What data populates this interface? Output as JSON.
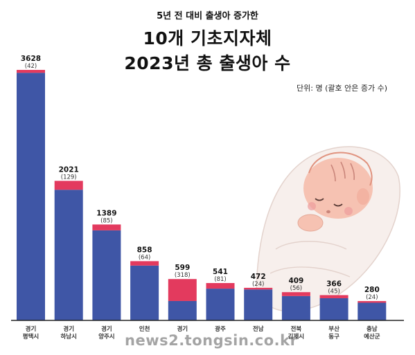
{
  "header": {
    "subtitle": "5년 전 대비 출생아 증가한",
    "title_line1": "10개 기초지자체",
    "title_line2": "2023년 총 출생아 수",
    "unit_note": "단위: 명 (괄호 안은 증가 수)"
  },
  "watermark": "news2.tongsin.co.kr",
  "colors": {
    "base": "#3f56a6",
    "increase": "#e33a5e",
    "baseline": "#222222"
  },
  "chart_data": {
    "type": "bar",
    "stacked": true,
    "categories": [
      [
        "경기",
        "평택시"
      ],
      [
        "경기",
        "하남시"
      ],
      [
        "경기",
        "양주시"
      ],
      [
        "인천",
        ""
      ],
      [
        "경기",
        ""
      ],
      [
        "광주",
        ""
      ],
      [
        "전남",
        ""
      ],
      [
        "전북",
        "김제시"
      ],
      [
        "부산",
        "동구"
      ],
      [
        "충남",
        "예산군"
      ]
    ],
    "totals": [
      3628,
      2021,
      1389,
      858,
      599,
      541,
      472,
      409,
      366,
      280
    ],
    "increases": [
      42,
      129,
      85,
      64,
      318,
      81,
      24,
      56,
      45,
      24
    ],
    "total_labels": [
      "3628",
      "2021",
      "1389",
      "858",
      "599",
      "541",
      "472",
      "409",
      "366",
      "280"
    ],
    "increase_labels": [
      "(42)",
      "(129)",
      "(85)",
      "(64)",
      "(318)",
      "(81)",
      "(24)",
      "(56)",
      "(45)",
      "(24)"
    ],
    "ylim": [
      0,
      3628
    ],
    "grid": false,
    "legend": "none"
  }
}
